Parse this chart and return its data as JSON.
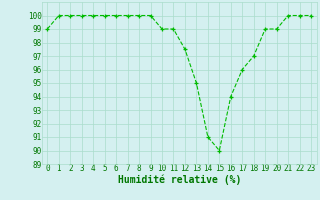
{
  "x": [
    0,
    1,
    2,
    3,
    4,
    5,
    6,
    7,
    8,
    9,
    10,
    11,
    12,
    13,
    14,
    15,
    16,
    17,
    18,
    19,
    20,
    21,
    22,
    23
  ],
  "y": [
    99,
    100,
    100,
    100,
    100,
    100,
    100,
    100,
    100,
    100,
    99,
    99,
    97.5,
    95,
    91,
    90,
    94,
    96,
    97,
    99,
    99,
    100,
    100,
    100
  ],
  "xlabel": "Humidité relative (%)",
  "ylim": [
    89,
    101
  ],
  "xlim": [
    -0.5,
    23.5
  ],
  "yticks": [
    89,
    90,
    91,
    92,
    93,
    94,
    95,
    96,
    97,
    98,
    99,
    100
  ],
  "xticks": [
    0,
    1,
    2,
    3,
    4,
    5,
    6,
    7,
    8,
    9,
    10,
    11,
    12,
    13,
    14,
    15,
    16,
    17,
    18,
    19,
    20,
    21,
    22,
    23
  ],
  "line_color": "#00bb00",
  "marker_color": "#00bb00",
  "bg_color": "#d4f0f0",
  "grid_color": "#aaddcc",
  "tick_label_color": "#007700",
  "xlabel_color": "#007700",
  "tick_fontsize": 5.5,
  "xlabel_fontsize": 7.0
}
